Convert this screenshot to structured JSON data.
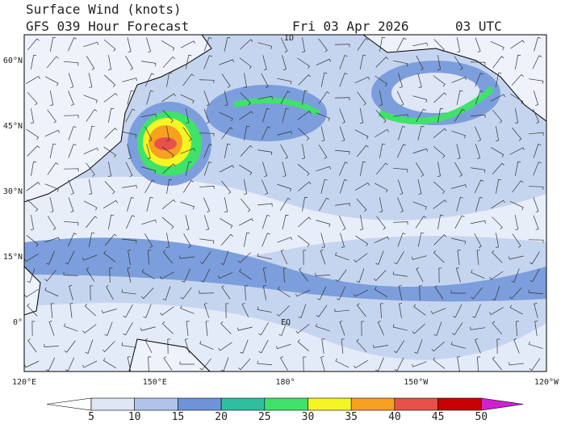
{
  "header": {
    "title": "Surface Wind (knots)",
    "subtitle": "GFS 039 Hour Forecast",
    "date": "Fri 03 Apr 2026",
    "time": "03 UTC"
  },
  "map": {
    "lat_labels": [
      "60°N",
      "45°N",
      "30°N",
      "15°N",
      "0°"
    ],
    "lon_labels": [
      "120°E",
      "150°E",
      "180°",
      "150°W",
      "120°W"
    ],
    "markers": [
      "ID",
      "EQ"
    ]
  },
  "colorbar": {
    "ticks": [
      5,
      10,
      15,
      20,
      25,
      30,
      35,
      40,
      45,
      50
    ],
    "colors": [
      "#ffffff",
      "#dfe6f5",
      "#b0c4ea",
      "#6f93d8",
      "#2fbf9e",
      "#3fe36a",
      "#f5f524",
      "#f8a020",
      "#e8504a",
      "#c80000",
      "#d020d0"
    ]
  }
}
